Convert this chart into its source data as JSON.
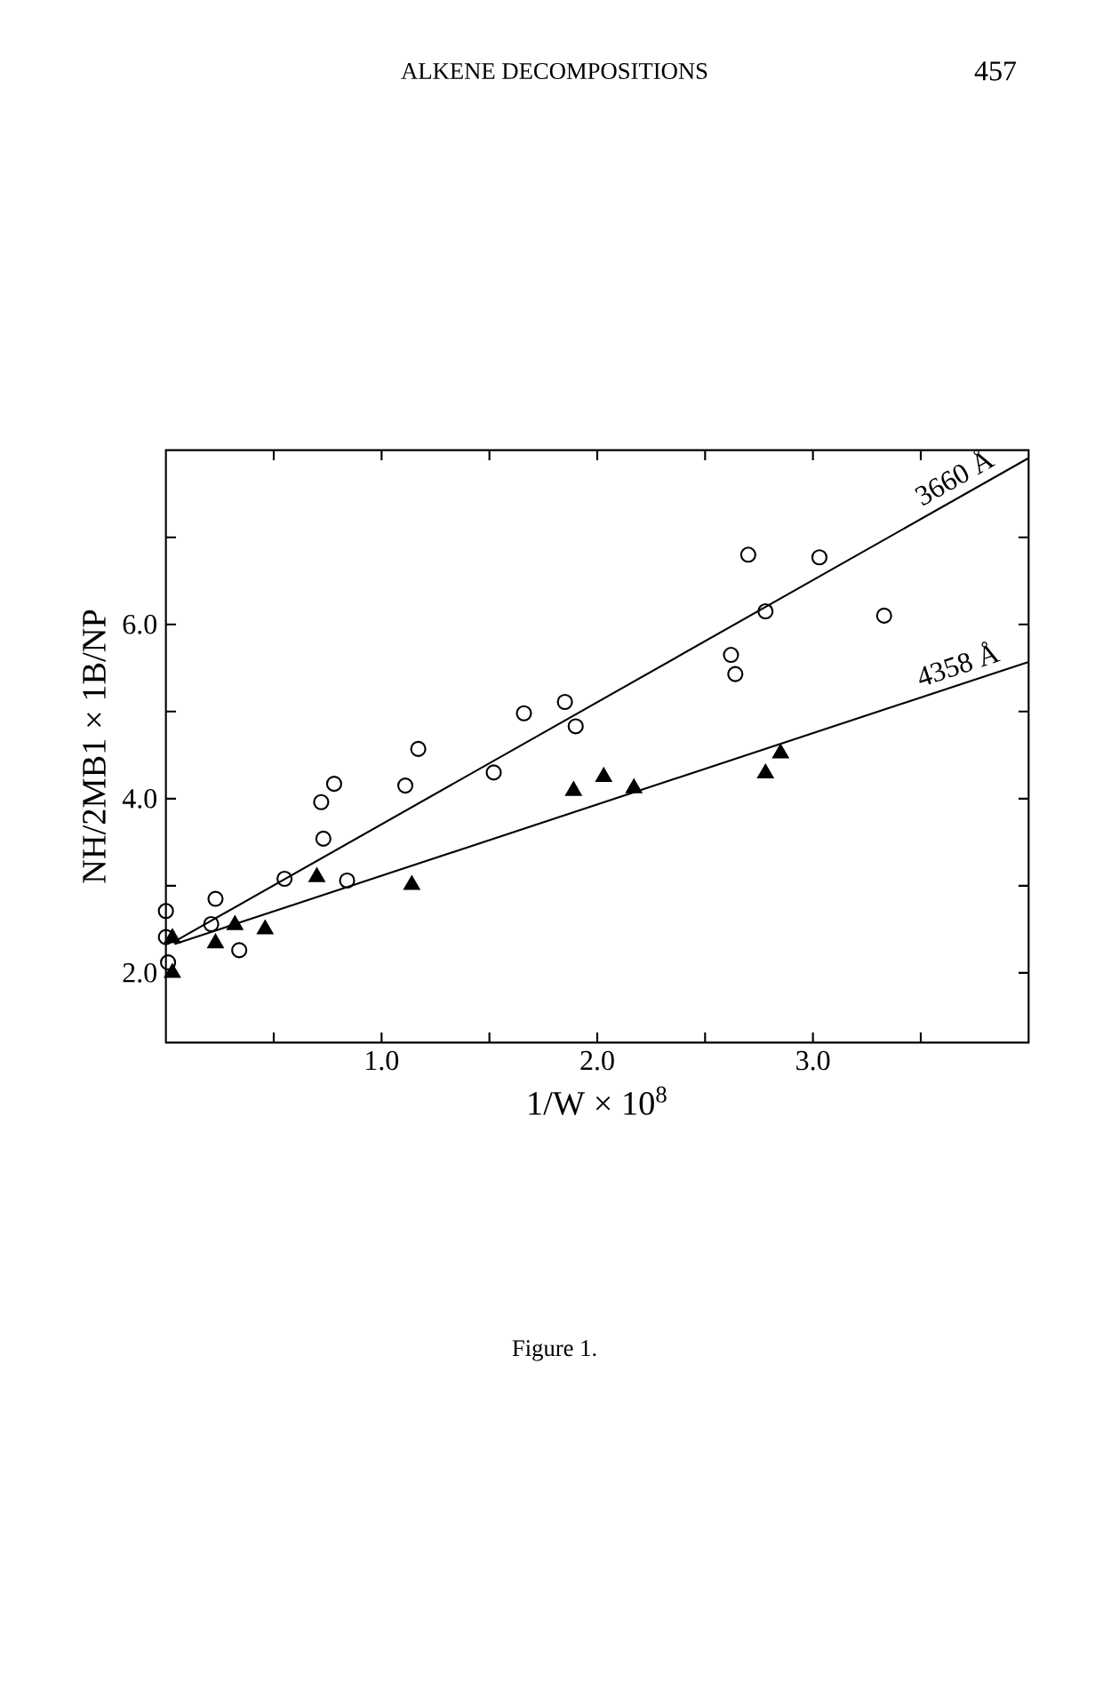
{
  "chart_data": {
    "type": "scatter",
    "xlabel": "1/W × 10$^{8}$",
    "ylabel": "NH/2MB1 × 1B/NP",
    "annotations": [
      "ALKENE DECOMPOSITIONS",
      "457",
      "Figure 1.",
      {
        "text": "3660 Å",
        "x": 3.7,
        "y": 7.49
      },
      {
        "text": "4358 Å",
        "x": 3.7,
        "y": 5.32
      }
    ],
    "xlim": [
      0,
      4.0
    ],
    "ylim": [
      1.2,
      8.0
    ],
    "xticks": [
      {
        "value": 0.5,
        "label": null
      },
      {
        "value": 1,
        "label": "1.0"
      },
      {
        "value": 1.5,
        "label": null
      },
      {
        "value": 2,
        "label": "2.0"
      },
      {
        "value": 2.5,
        "label": null
      },
      {
        "value": 3,
        "label": "3.0"
      },
      {
        "value": 3.5,
        "label": null
      }
    ],
    "yticks": [
      {
        "value": 2,
        "label": "2.0"
      },
      {
        "value": 3,
        "label": null
      },
      {
        "value": 4,
        "label": "4.0"
      },
      {
        "value": 5,
        "label": null
      },
      {
        "value": 6,
        "label": "6.0"
      },
      {
        "value": 7,
        "label": null
      }
    ],
    "grid": false,
    "series": [
      {
        "type": "scatter",
        "marker": "circle",
        "color": "#000000",
        "x": [
          3.33,
          3.03,
          2.78,
          2.7,
          2.62,
          2.64,
          1.85,
          1.9,
          1.66,
          1.52,
          1.17,
          1.11,
          0.84,
          0.78,
          0.72,
          0.73,
          0.55,
          0.34,
          0.23,
          0.21,
          0.0,
          0.0,
          0.01
        ],
        "values": [
          6.1,
          6.77,
          6.15,
          6.8,
          5.65,
          5.43,
          5.11,
          4.83,
          4.98,
          4.3,
          4.57,
          4.15,
          3.06,
          4.17,
          3.96,
          3.54,
          3.08,
          2.26,
          2.85,
          2.56,
          2.71,
          2.41,
          2.12
        ]
      },
      {
        "type": "scatter",
        "marker": "triangle",
        "color": "#000000",
        "x": [
          2.85,
          2.78,
          2.17,
          2.03,
          1.89,
          1.14,
          0.7,
          0.46,
          0.32,
          0.23,
          0.03,
          0.03
        ],
        "values": [
          4.52,
          4.29,
          4.12,
          4.25,
          4.09,
          3.01,
          3.1,
          2.5,
          2.55,
          2.34,
          2.4,
          2.0
        ]
      },
      {
        "type": "line",
        "color": "#000000",
        "x": [
          0.04,
          4.0
        ],
        "values": [
          2.36,
          7.91
        ]
      },
      {
        "type": "line",
        "color": "#000000",
        "x": [
          0.04,
          4.0
        ],
        "values": [
          2.33,
          5.57
        ]
      }
    ]
  }
}
